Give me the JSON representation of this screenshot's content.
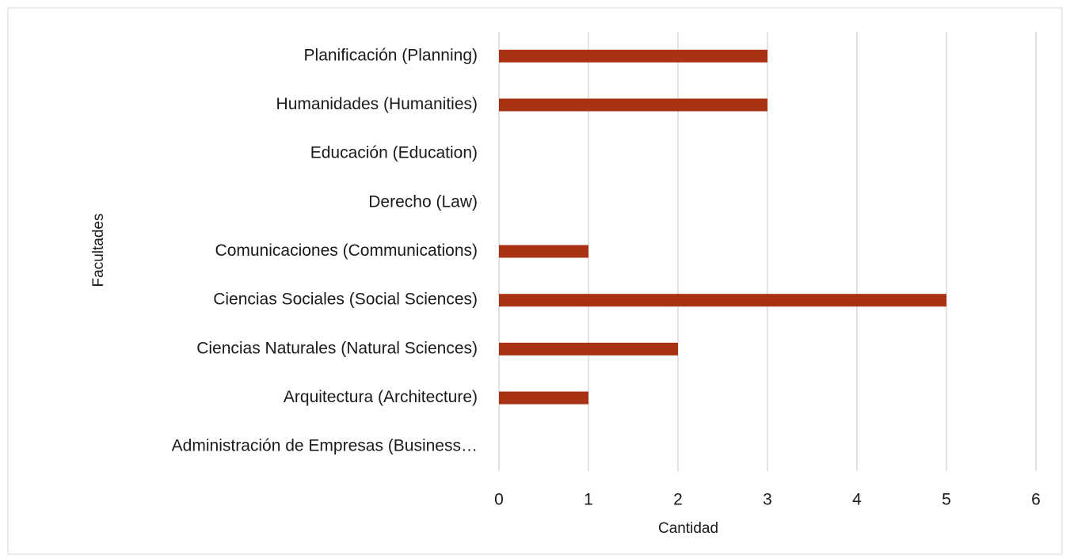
{
  "chart_data": {
    "type": "bar",
    "orientation": "horizontal",
    "categories": [
      "Administración de Empresas (Business…",
      "Arquitectura (Architecture)",
      "Ciencias Naturales (Natural Sciences)",
      "Ciencias Sociales (Social Sciences)",
      "Comunicaciones (Communications)",
      "Derecho (Law)",
      "Educación (Education)",
      "Humanidades (Humanities)",
      "Planificación (Planning)"
    ],
    "values": [
      0,
      1,
      2,
      5,
      1,
      0,
      0,
      3,
      3
    ],
    "color": "#a93214",
    "x_label": "Cantidad",
    "y_label": "Facultades",
    "xlim": [
      0,
      6
    ],
    "xticks": [
      0,
      1,
      2,
      3,
      4,
      5,
      6
    ],
    "grid": true
  }
}
